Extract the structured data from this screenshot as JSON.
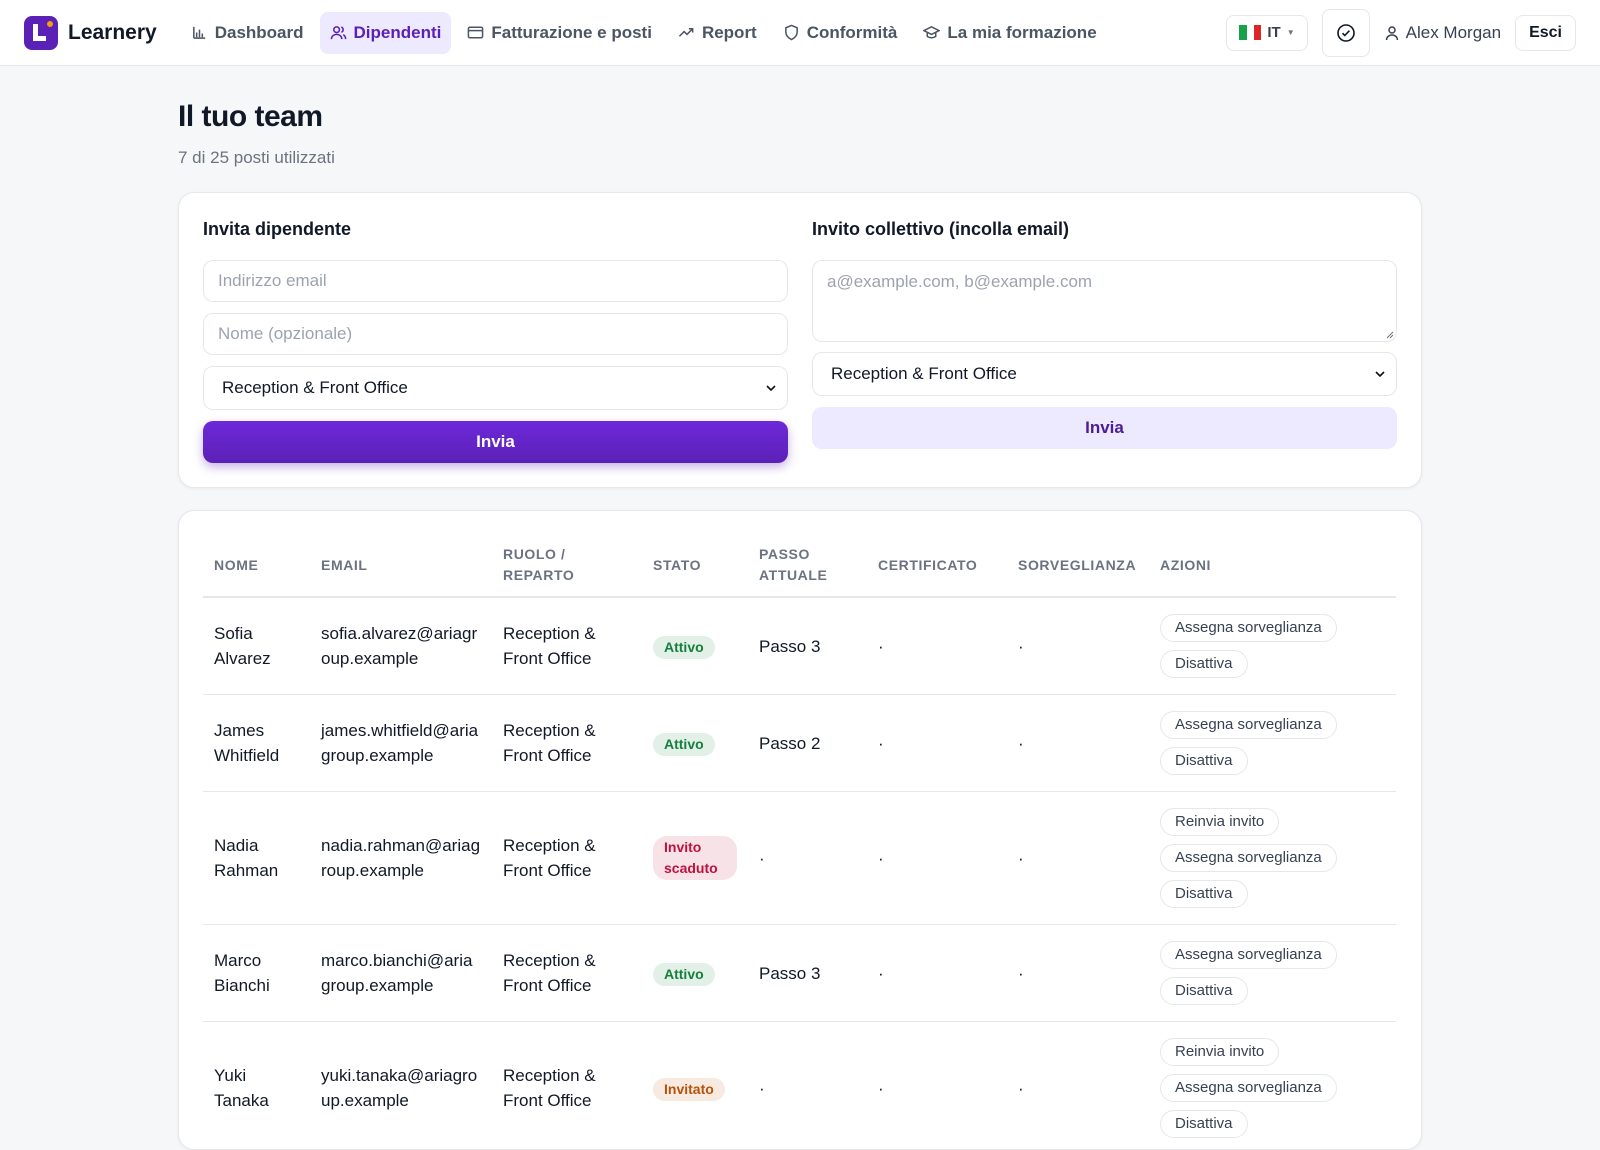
{
  "nav": {
    "brand": "Learnery",
    "items": [
      "Dashboard",
      "Dipendenti",
      "Fatturazione e posti",
      "Report",
      "Conformità",
      "La mia formazione"
    ],
    "active": 1,
    "language": "IT",
    "user": "Alex Morgan",
    "logout": "Esci"
  },
  "header": {
    "title": "Il tuo team",
    "subtitle": "7 di 25 posti utilizzati"
  },
  "invite": {
    "title": "Invita dipendente",
    "email_placeholder": "Indirizzo email",
    "name_placeholder": "Nome (opzionale)",
    "department": "Reception & Front Office",
    "button": "Invia"
  },
  "bulk_invite": {
    "title": "Invito collettivo (incolla email)",
    "placeholder": "a@example.com, b@example.com",
    "department": "Reception & Front Office",
    "button": "Invia"
  },
  "table": {
    "headers": [
      "NOME",
      "EMAIL",
      "RUOLO / REPARTO",
      "STATO",
      "PASSO ATTUALE",
      "CERTIFICATO",
      "SORVEGLIANZA",
      "AZIONI"
    ],
    "rows": [
      {
        "name": "Sofia Alvarez",
        "email": "sofia.alvarez@ariagroup.example",
        "role": "Reception & Front Office",
        "status": "Attivo",
        "status_color": "#15803d",
        "step": "Passo 3",
        "certificate": "·",
        "supervision": "·",
        "actions": [
          "Assegna sorveglianza",
          "Disattiva"
        ]
      },
      {
        "name": "James Whitfield",
        "email": "james.whitfield@ariagroup.example",
        "role": "Reception & Front Office",
        "status": "Attivo",
        "status_color": "#15803d",
        "step": "Passo 2",
        "certificate": "·",
        "supervision": "·",
        "actions": [
          "Assegna sorveglianza",
          "Disattiva"
        ]
      },
      {
        "name": "Nadia Rahman",
        "email": "nadia.rahman@ariagroup.example",
        "role": "Reception & Front Office",
        "status": "Invito scaduto",
        "status_color": "#be123c",
        "step": "·",
        "certificate": "·",
        "supervision": "·",
        "actions": [
          "Reinvia invito",
          "Assegna sorveglianza",
          "Disattiva"
        ]
      },
      {
        "name": "Marco Bianchi",
        "email": "marco.bianchi@ariagroup.example",
        "role": "Reception & Front Office",
        "status": "Attivo",
        "status_color": "#15803d",
        "step": "Passo 3",
        "certificate": "·",
        "supervision": "·",
        "actions": [
          "Assegna sorveglianza",
          "Disattiva"
        ]
      },
      {
        "name": "Yuki Tanaka",
        "email": "yuki.tanaka@ariagroup.example",
        "role": "Reception & Front Office",
        "status": "Invitato",
        "status_color": "#b45309",
        "step": "·",
        "certificate": "·",
        "supervision": "·",
        "actions": [
          "Reinvia invito",
          "Assegna sorveglianza",
          "Disattiva"
        ]
      }
    ]
  }
}
